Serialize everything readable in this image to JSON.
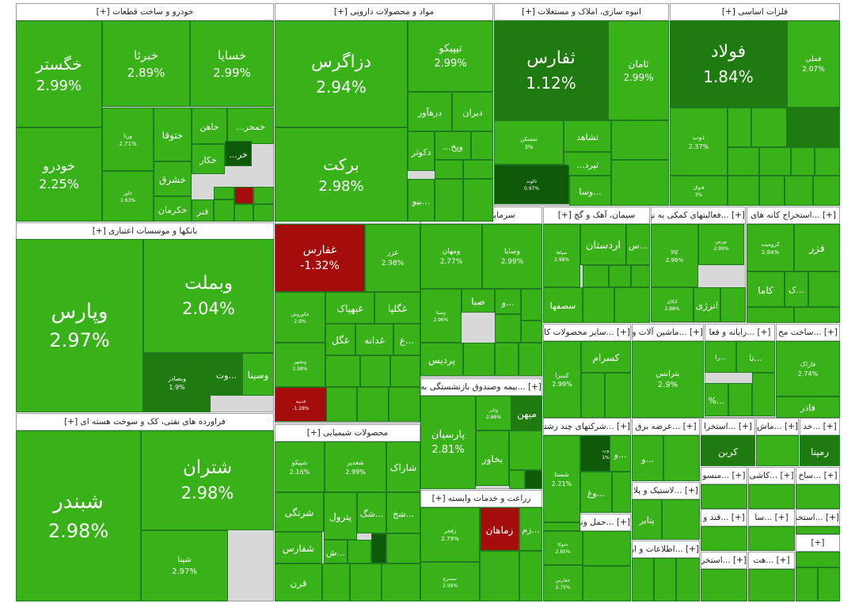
{
  "chart_data": {
    "type": "treemap",
    "title": "",
    "colors": {
      "up_bright": "#39b21a",
      "up_mid": "#2e9a14",
      "up_dark": "#1f7a10",
      "up_darkest": "#0f5a08",
      "down": "#a50d0d",
      "header_bg": "#ffffff",
      "sector_border": "#9e9e9e"
    },
    "sectors": [
      {
        "name": "خودرو و ساخت قطعات [+]",
        "stocks": [
          {
            "name": "خگستر",
            "pct": "2.99%",
            "value": 2.99
          },
          {
            "name": "خبرئا",
            "pct": "2.89%",
            "value": 2.89
          },
          {
            "name": "خسایا",
            "pct": "2.99%",
            "value": 2.99
          },
          {
            "name": "خودرو",
            "pct": "2.25%",
            "value": 2.25
          },
          {
            "name": "ورنا",
            "pct": "2.71%",
            "value": 2.71
          },
          {
            "name": "خاور",
            "pct": "2.63%",
            "value": 2.63
          },
          {
            "name": "ختوقا",
            "pct": "",
            "value": null
          },
          {
            "name": "خاهن",
            "pct": "",
            "value": null
          },
          {
            "name": "خمحر...",
            "pct": "",
            "value": null
          },
          {
            "name": "خشرق",
            "pct": "",
            "value": null
          },
          {
            "name": "خکار",
            "pct": "",
            "value": null
          },
          {
            "name": "خر...",
            "pct": "",
            "value": null
          },
          {
            "name": "خکرمان",
            "pct": "",
            "value": null
          },
          {
            "name": "فنر",
            "pct": "",
            "value": null
          }
        ]
      },
      {
        "name": "مواد و محصولات دارویی [+]",
        "stocks": [
          {
            "name": "دزاگرس",
            "pct": "2.94%",
            "value": 2.94
          },
          {
            "name": "تیپیکو",
            "pct": "2.99%",
            "value": 2.99
          },
          {
            "name": "برکت",
            "pct": "2.98%",
            "value": 2.98
          },
          {
            "name": "درهآور",
            "pct": "",
            "value": null
          },
          {
            "name": "دیران",
            "pct": "",
            "value": null
          },
          {
            "name": "دکوثر",
            "pct": "",
            "value": null
          },
          {
            "name": "وپخ...",
            "pct": "",
            "value": null
          },
          {
            "name": "...بیو",
            "pct": "",
            "value": null
          }
        ]
      },
      {
        "name": "انبوه سازی، املاک و مستغلات [+]",
        "stocks": [
          {
            "name": "ثفارس",
            "pct": "1.12%",
            "value": 1.12
          },
          {
            "name": "ثامان",
            "pct": "2.99%",
            "value": 2.99
          },
          {
            "name": "ثمسکن",
            "pct": "3%",
            "value": 3.0
          },
          {
            "name": "ثشاهد",
            "pct": "",
            "value": null
          },
          {
            "name": "ثپرد...",
            "pct": "",
            "value": null
          },
          {
            "name": "ثالوند",
            "pct": "0.97%",
            "value": 0.97
          },
          {
            "name": "...وسا",
            "pct": "",
            "value": null
          }
        ]
      },
      {
        "name": "فلزات اساسی [+]",
        "stocks": [
          {
            "name": "فولاد",
            "pct": "1.84%",
            "value": 1.84
          },
          {
            "name": "فملی",
            "pct": "2.07%",
            "value": 2.07
          },
          {
            "name": "ذوب",
            "pct": "2.37%",
            "value": 2.37
          },
          {
            "name": "فنوال",
            "pct": "3%",
            "value": 3.0
          }
        ]
      },
      {
        "name": "بانکها و موسسات اعتباری [+]",
        "stocks": [
          {
            "name": "وپارس",
            "pct": "2.97%",
            "value": 2.97
          },
          {
            "name": "وبملت",
            "pct": "2.04%",
            "value": 2.04
          },
          {
            "name": "وبصادر",
            "pct": "1.9%",
            "value": 1.9
          },
          {
            "name": "...وت",
            "pct": "",
            "value": null
          },
          {
            "name": "وسینا",
            "pct": "",
            "value": null
          }
        ]
      },
      {
        "name": "فراورده های نفتی، کک و سوخت هسته ای [+]",
        "stocks": [
          {
            "name": "شبندر",
            "pct": "2.98%",
            "value": 2.98
          },
          {
            "name": "شتران",
            "pct": "2.98%",
            "value": 2.98
          },
          {
            "name": "شپنا",
            "pct": "2.97%",
            "value": 2.97
          }
        ]
      },
      {
        "name": "[+] ...محصولات غذایی و آشامیدنی به جز",
        "stocks": [
          {
            "name": "غفارس",
            "pct": "-1.32%",
            "value": -1.32
          },
          {
            "name": "غزر",
            "pct": "2.98%",
            "value": 2.98
          },
          {
            "name": "غکوروش",
            "pct": "2.9%",
            "value": 2.9
          },
          {
            "name": "غبهپاک",
            "pct": "",
            "value": null
          },
          {
            "name": "غگلپا",
            "pct": "",
            "value": null
          },
          {
            "name": "غگل",
            "pct": "",
            "value": null
          },
          {
            "name": "غدانه",
            "pct": "",
            "value": null
          },
          {
            "name": "...غ",
            "pct": "",
            "value": null
          },
          {
            "name": "وبشهر",
            "pct": "2.98%",
            "value": 2.98
          },
          {
            "name": "غدیبه",
            "pct": "-1.28%",
            "value": -1.28
          }
        ]
      },
      {
        "name": "سرمایه گذاریها [+]",
        "stocks": [
          {
            "name": "ومهان",
            "pct": "2.77%",
            "value": 2.77
          },
          {
            "name": "وسایا",
            "pct": "2.99%",
            "value": 2.99
          },
          {
            "name": "وصنا",
            "pct": "2.96%",
            "value": 2.96
          },
          {
            "name": "صبا",
            "pct": "",
            "value": null
          },
          {
            "name": "...و",
            "pct": "",
            "value": null
          },
          {
            "name": "پردیس",
            "pct": "",
            "value": null
          }
        ]
      },
      {
        "name": "سیمان، آهک و گچ [+]",
        "stocks": [
          {
            "name": "سپاها",
            "pct": "2.98%",
            "value": 2.98
          },
          {
            "name": "اردستان",
            "pct": "",
            "value": null
          },
          {
            "name": "...س",
            "pct": "",
            "value": null
          },
          {
            "name": "سصفها",
            "pct": "",
            "value": null
          }
        ]
      },
      {
        "name": "[+] ...فعالیتهای کمکی به نها",
        "stocks": [
          {
            "name": "کالا",
            "pct": "2.96%",
            "value": 2.96
          },
          {
            "name": "بورس",
            "pct": "2.99%",
            "value": 2.99
          },
          {
            "name": "اتکای",
            "pct": "2.88%",
            "value": 2.88
          },
          {
            "name": "انرژی",
            "pct": "",
            "value": null
          }
        ]
      },
      {
        "name": "[+] ...استخراج کانه های",
        "stocks": [
          {
            "name": "کرومیت",
            "pct": "2.84%",
            "value": 2.84
          },
          {
            "name": "فزر",
            "pct": "",
            "value": null
          },
          {
            "name": "کاما",
            "pct": "",
            "value": null
          },
          {
            "name": "...ک",
            "pct": "",
            "value": null
          }
        ]
      },
      {
        "name": "[+] ...بیمه وصندوق بازنشستگی به",
        "stocks": [
          {
            "name": "پارسیان",
            "pct": "2.81%",
            "value": 2.81
          },
          {
            "name": "میهن",
            "pct": "",
            "value": null
          },
          {
            "name": "بخاور",
            "pct": "",
            "value": null
          },
          {
            "name": "وتایر",
            "pct": "2.86%",
            "value": 2.86
          }
        ]
      },
      {
        "name": "[+] ...سایر محصولات کا",
        "stocks": [
          {
            "name": "کسرا",
            "pct": "2.99%",
            "value": 2.99
          },
          {
            "name": "کسرام",
            "pct": "",
            "value": null
          }
        ]
      },
      {
        "name": "[+] ...ماشین آلات و",
        "stocks": [
          {
            "name": "بترانس",
            "pct": "2.9%",
            "value": 2.9
          }
        ]
      },
      {
        "name": "[+] ...رایانه و فعا",
        "stocks": [
          {
            "name": "...را",
            "pct": "",
            "value": null
          },
          {
            "name": "...تا",
            "pct": "",
            "value": null
          },
          {
            "name": "...%",
            "pct": "",
            "value": null
          }
        ]
      },
      {
        "name": "[+] ...ساخت مح",
        "stocks": [
          {
            "name": "فاراک",
            "pct": "2.74%",
            "value": 2.74
          },
          {
            "name": "فاذر",
            "pct": "",
            "value": null
          }
        ]
      },
      {
        "name": "محصولات شیمیایی [+]",
        "stocks": [
          {
            "name": "شاراک",
            "pct": "",
            "value": null
          },
          {
            "name": "شغدیر",
            "pct": "2.99%",
            "value": 2.99
          },
          {
            "name": "شپیکو",
            "pct": "2.16%",
            "value": 2.16
          },
          {
            "name": "...شخ",
            "pct": "",
            "value": null
          },
          {
            "name": "شرنگی",
            "pct": "",
            "value": null
          },
          {
            "name": "پترول",
            "pct": "",
            "value": null
          },
          {
            "name": "...شگ",
            "pct": "",
            "value": null
          },
          {
            "name": "شفارس",
            "pct": "",
            "value": null
          },
          {
            "name": "...ش",
            "pct": "",
            "value": null
          },
          {
            "name": "قرن",
            "pct": "",
            "value": null
          }
        ]
      },
      {
        "name": "زراعت و خدمات وابسته [+]",
        "stocks": [
          {
            "name": "زفجر",
            "pct": "2.79%",
            "value": 2.79
          },
          {
            "name": "زماهان",
            "pct": "",
            "value": null
          },
          {
            "name": "...زم",
            "pct": "",
            "value": null
          },
          {
            "name": "سیمرغ",
            "pct": "2.99%",
            "value": 2.99
          }
        ]
      },
      {
        "name": "[+] ...شرکتهای چند رشته",
        "stocks": [
          {
            "name": "وپ",
            "pct": "1%",
            "value": 1.0
          },
          {
            "name": "...و",
            "pct": "",
            "value": null
          },
          {
            "name": "شستا",
            "pct": "2.21%",
            "value": 2.21
          },
          {
            "name": "...وغ",
            "pct": "",
            "value": null
          }
        ]
      },
      {
        "name": "[+] ...عرضه برق",
        "stocks": [
          {
            "name": "...و",
            "pct": "",
            "value": null
          }
        ]
      },
      {
        "name": "[+] ...استخرا",
        "stocks": [
          {
            "name": "کربن",
            "pct": "",
            "value": null
          }
        ]
      },
      {
        "name": "[+] ...ماش",
        "stocks": []
      },
      {
        "name": "[+] ...خد",
        "stocks": [
          {
            "name": "رمپنا",
            "pct": "",
            "value": null
          }
        ]
      },
      {
        "name": "[+] ...لاستیک و پلا",
        "stocks": [
          {
            "name": "پتایر",
            "pct": "",
            "value": null
          }
        ]
      },
      {
        "name": "[+] ...منسو",
        "stocks": []
      },
      {
        "name": "[+] ...کاشی",
        "stocks": []
      },
      {
        "name": "[+] ...ساخ",
        "stocks": []
      },
      {
        "name": "[+] ...حمل ونقل، انباردار",
        "stocks": [
          {
            "name": "حتوکا",
            "pct": "2.85%",
            "value": 2.85
          },
          {
            "name": "حفارس",
            "pct": "2.75%",
            "value": 2.75
          }
        ]
      },
      {
        "name": "[+] ...اطلاعات و ار",
        "stocks": []
      },
      {
        "name": "[+] ...قند و",
        "stocks": []
      },
      {
        "name": "[+] ...سا",
        "stocks": []
      },
      {
        "name": "[+] ...استخرا",
        "stocks": []
      },
      {
        "name": "[+] ...استخر",
        "stocks": []
      },
      {
        "name": "[+] ...هت",
        "stocks": []
      },
      {
        "name": "[+]",
        "stocks": []
      }
    ]
  }
}
